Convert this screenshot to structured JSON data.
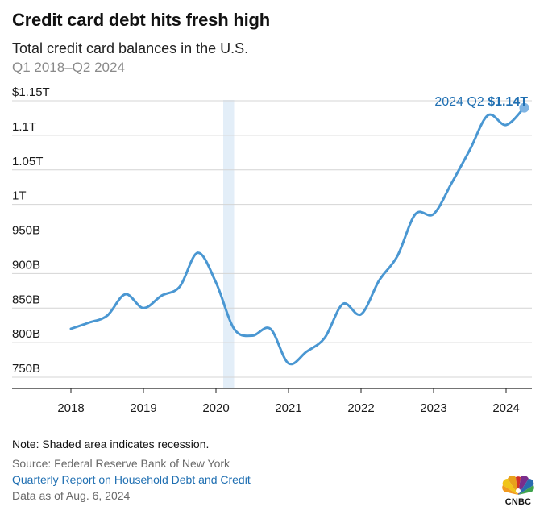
{
  "header": {
    "title": "Credit card debt hits fresh high",
    "subtitle": "Total credit card balances in the U.S.",
    "period": "Q1 2018–Q2 2024"
  },
  "footer": {
    "note": "Note: Shaded area indicates recession.",
    "source": "Source: Federal Reserve Bank of New York",
    "link": "Quarterly Report on Household Debt and Credit",
    "as_of": "Data as of Aug. 6, 2024"
  },
  "logo": {
    "text": "CNBC",
    "icon": "cnbc-peacock-icon"
  },
  "colors": {
    "line": "#4a97d2",
    "recession": "#e3eef8",
    "grid": "#d4d4d4",
    "link": "#1f6fb2",
    "annotation": "#1f6fb2"
  },
  "chart_data": {
    "type": "line",
    "title": "Credit card debt hits fresh high",
    "y_tick_labels": [
      "750B",
      "800B",
      "850B",
      "900B",
      "950B",
      "1T",
      "1.05T",
      "1.1T",
      "$1.15T"
    ],
    "y_ticks": [
      750,
      800,
      850,
      900,
      950,
      1000,
      1050,
      1100,
      1150
    ],
    "x_tick_labels": [
      "2018",
      "2019",
      "2020",
      "2021",
      "2022",
      "2023",
      "2024"
    ],
    "x_ticks": [
      2018,
      2019,
      2020,
      2021,
      2022,
      2023,
      2024
    ],
    "ylim": [
      740,
      1150
    ],
    "xlim": [
      2017.75,
      2024.5
    ],
    "grid": true,
    "recession": [
      2020.1,
      2020.25
    ],
    "annotation": {
      "label": "2024 Q2",
      "value_label": "$1.14T",
      "x": 2024.25,
      "y": 1140
    },
    "series": [
      {
        "x": [
          2018.0,
          2018.25,
          2018.5,
          2018.75,
          2019.0,
          2019.25,
          2019.5,
          2019.75,
          2020.0,
          2020.25,
          2020.5,
          2020.75,
          2021.0,
          2021.25,
          2021.5,
          2021.75,
          2022.0,
          2022.25,
          2022.5,
          2022.75,
          2023.0,
          2023.25,
          2023.5,
          2023.75,
          2024.0,
          2024.25
        ],
        "values": [
          820,
          829,
          839,
          870,
          850,
          868,
          881,
          930,
          887,
          820,
          810,
          820,
          770,
          787,
          807,
          856,
          841,
          890,
          925,
          986,
          986,
          1031,
          1079,
          1129,
          1115,
          1140
        ]
      }
    ]
  }
}
